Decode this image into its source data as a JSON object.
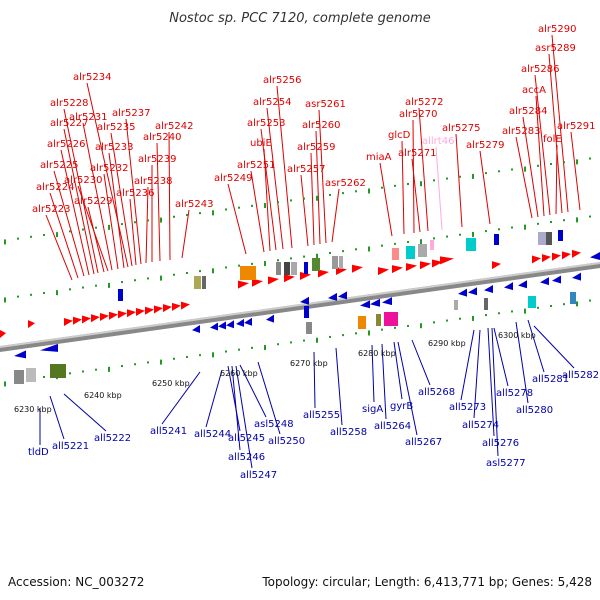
{
  "header": {
    "title": "Nostoc sp. PCC 7120, complete genome"
  },
  "footer": {
    "accession": "Accession: NC_003272",
    "summary": "Topology: circular; Length: 6,413,771 bp; Genes: 5,428"
  },
  "colors": {
    "forward_gene": "#ff0000",
    "reverse_gene": "#0000cc",
    "rna_gene": "#ffaadd",
    "backbone": "#888888",
    "tick": "#229922"
  },
  "kbp_labels": [
    "6230 kbp",
    "6240 kbp",
    "6250 kbp",
    "6260 kbp",
    "6270 kbp",
    "6280 kbp",
    "6290 kbp",
    "6300 kbp"
  ],
  "top_labels": [
    "alr5223",
    "alr5224",
    "alr5225",
    "alr5226",
    "alr5227",
    "alr5228",
    "alr5229",
    "alr5230",
    "alr5231",
    "alr5232",
    "alr5233",
    "alr5234",
    "alr5235",
    "alr5236",
    "alr5237",
    "alr5238",
    "alr5239",
    "alr5240",
    "alr5242",
    "alr5243",
    "alr5249",
    "alr5251",
    "ubiE",
    "alr5253",
    "alr5254",
    "alr5256",
    "alr5257",
    "alr5259",
    "alr5260",
    "asr5261",
    "asr5262",
    "miaA",
    "glcD",
    "alr5270",
    "alr5271",
    "alr5272",
    "allrt46",
    "alr5275",
    "alr5279",
    "alr5283",
    "alr5284",
    "accA",
    "alr5286",
    "folE",
    "asr5289",
    "alr5290",
    "alr5291"
  ],
  "bottom_labels": [
    "tldD",
    "all5221",
    "all5222",
    "all5241",
    "all5244",
    "all5245",
    "all5246",
    "all5247",
    "asl5248",
    "all5250",
    "all5255",
    "all5258",
    "sigA",
    "all5264",
    "gyrB",
    "all5267",
    "all5268",
    "all5273",
    "all5274",
    "all5276",
    "asl5277",
    "all5278",
    "all5280",
    "all5281",
    "all5282"
  ]
}
